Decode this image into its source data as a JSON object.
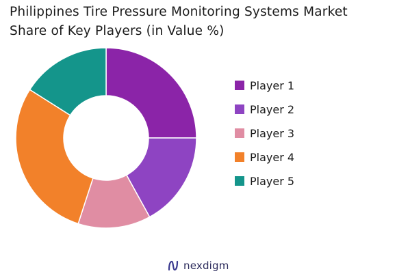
{
  "chart_data": {
    "type": "pie",
    "title_lines": [
      "Philippines Tire Pressure Monitoring Systems Market",
      "Share of Key Players (in Value %)"
    ],
    "categories": [
      "Player 1",
      "Player 2",
      "Player 3",
      "Player 4",
      "Player 5"
    ],
    "values": [
      25,
      17,
      13,
      29,
      16
    ],
    "colors": [
      "#8b24a8",
      "#8e44c2",
      "#e08da3",
      "#f2812a",
      "#14958b"
    ],
    "legend_position": "right"
  },
  "brand": {
    "name": "nexdigm",
    "icon": "nexdigm-logo-icon"
  }
}
